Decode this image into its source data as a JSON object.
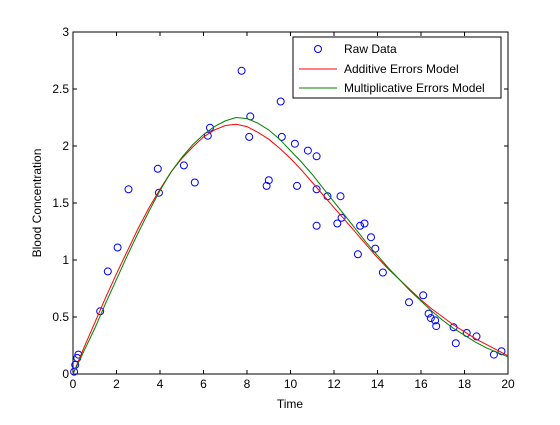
{
  "chart_data": {
    "type": "line",
    "title": "",
    "xlabel": "Time",
    "ylabel": "Blood Concentration",
    "xlim": [
      0,
      20
    ],
    "ylim": [
      0,
      3
    ],
    "xticks": [
      0,
      2,
      4,
      6,
      8,
      10,
      12,
      14,
      16,
      18,
      20
    ],
    "yticks": [
      0,
      0.5,
      1,
      1.5,
      2,
      2.5,
      3
    ],
    "xtick_labels": [
      "0",
      "2",
      "4",
      "6",
      "8",
      "10",
      "12",
      "14",
      "16",
      "18",
      "20"
    ],
    "ytick_labels": [
      "0",
      "0.5",
      "1",
      "1.5",
      "2",
      "2.5",
      "3"
    ],
    "grid": false,
    "legend_position": "top-right",
    "series": [
      {
        "name": "Raw Data",
        "kind": "scatter",
        "marker": "circle",
        "color": "#0000ff",
        "points": [
          [
            0.05,
            0.02
          ],
          [
            0.1,
            0.08
          ],
          [
            0.2,
            0.14
          ],
          [
            0.25,
            0.17
          ],
          [
            1.25,
            0.55
          ],
          [
            1.6,
            0.9
          ],
          [
            2.05,
            1.11
          ],
          [
            2.55,
            1.62
          ],
          [
            3.9,
            1.8
          ],
          [
            3.95,
            1.59
          ],
          [
            5.1,
            1.83
          ],
          [
            5.6,
            1.68
          ],
          [
            6.2,
            2.09
          ],
          [
            6.3,
            2.16
          ],
          [
            7.75,
            2.66
          ],
          [
            8.1,
            2.08
          ],
          [
            8.15,
            2.26
          ],
          [
            8.9,
            1.65
          ],
          [
            9.0,
            1.7
          ],
          [
            9.55,
            2.39
          ],
          [
            9.6,
            2.08
          ],
          [
            10.2,
            2.02
          ],
          [
            10.3,
            1.65
          ],
          [
            10.8,
            1.96
          ],
          [
            11.2,
            1.91
          ],
          [
            11.2,
            1.3
          ],
          [
            11.2,
            1.62
          ],
          [
            11.7,
            1.56
          ],
          [
            12.15,
            1.32
          ],
          [
            12.3,
            1.56
          ],
          [
            12.35,
            1.37
          ],
          [
            13.1,
            1.05
          ],
          [
            13.2,
            1.3
          ],
          [
            13.4,
            1.32
          ],
          [
            13.7,
            1.2
          ],
          [
            13.9,
            1.1
          ],
          [
            14.25,
            0.89
          ],
          [
            15.45,
            0.63
          ],
          [
            16.1,
            0.69
          ],
          [
            16.35,
            0.53
          ],
          [
            16.45,
            0.49
          ],
          [
            16.65,
            0.47
          ],
          [
            16.7,
            0.42
          ],
          [
            17.5,
            0.41
          ],
          [
            17.6,
            0.27
          ],
          [
            18.1,
            0.36
          ],
          [
            18.55,
            0.33
          ],
          [
            19.35,
            0.17
          ],
          [
            19.7,
            0.2
          ]
        ]
      },
      {
        "name": "Additive Errors Model",
        "kind": "line",
        "color": "#ff0000",
        "points": [
          [
            0,
            0
          ],
          [
            0.5,
            0.23
          ],
          [
            1,
            0.45
          ],
          [
            1.5,
            0.67
          ],
          [
            2,
            0.88
          ],
          [
            2.5,
            1.08
          ],
          [
            3,
            1.28
          ],
          [
            3.5,
            1.46
          ],
          [
            4,
            1.62
          ],
          [
            4.5,
            1.77
          ],
          [
            5,
            1.89
          ],
          [
            5.5,
            1.99
          ],
          [
            6,
            2.08
          ],
          [
            6.5,
            2.14
          ],
          [
            7,
            2.18
          ],
          [
            7.5,
            2.19
          ],
          [
            8,
            2.17
          ],
          [
            8.5,
            2.12
          ],
          [
            9,
            2.06
          ],
          [
            9.5,
            1.98
          ],
          [
            10,
            1.89
          ],
          [
            10.5,
            1.79
          ],
          [
            11,
            1.68
          ],
          [
            11.5,
            1.57
          ],
          [
            12,
            1.46
          ],
          [
            12.5,
            1.35
          ],
          [
            13,
            1.24
          ],
          [
            13.5,
            1.13
          ],
          [
            14,
            1.02
          ],
          [
            14.5,
            0.92
          ],
          [
            15,
            0.83
          ],
          [
            15.5,
            0.74
          ],
          [
            16,
            0.65
          ],
          [
            16.5,
            0.57
          ],
          [
            17,
            0.5
          ],
          [
            17.5,
            0.43
          ],
          [
            18,
            0.37
          ],
          [
            18.5,
            0.31
          ],
          [
            19,
            0.26
          ],
          [
            19.5,
            0.21
          ],
          [
            20,
            0.16
          ]
        ]
      },
      {
        "name": "Multiplicative Errors Model",
        "kind": "line",
        "color": "#008000",
        "points": [
          [
            0,
            0
          ],
          [
            0.5,
            0.2
          ],
          [
            1,
            0.4
          ],
          [
            1.5,
            0.62
          ],
          [
            2,
            0.83
          ],
          [
            2.5,
            1.04
          ],
          [
            3,
            1.24
          ],
          [
            3.5,
            1.43
          ],
          [
            4,
            1.61
          ],
          [
            4.5,
            1.77
          ],
          [
            5,
            1.9
          ],
          [
            5.5,
            2.01
          ],
          [
            6,
            2.1
          ],
          [
            6.5,
            2.17
          ],
          [
            7,
            2.22
          ],
          [
            7.5,
            2.25
          ],
          [
            8,
            2.24
          ],
          [
            8.5,
            2.2
          ],
          [
            9,
            2.14
          ],
          [
            9.5,
            2.06
          ],
          [
            10,
            1.96
          ],
          [
            10.5,
            1.86
          ],
          [
            11,
            1.75
          ],
          [
            11.5,
            1.63
          ],
          [
            12,
            1.51
          ],
          [
            12.5,
            1.39
          ],
          [
            13,
            1.27
          ],
          [
            13.5,
            1.15
          ],
          [
            14,
            1.04
          ],
          [
            14.5,
            0.93
          ],
          [
            15,
            0.83
          ],
          [
            15.5,
            0.73
          ],
          [
            16,
            0.64
          ],
          [
            16.5,
            0.55
          ],
          [
            17,
            0.47
          ],
          [
            17.5,
            0.4
          ],
          [
            18,
            0.34
          ],
          [
            18.5,
            0.28
          ],
          [
            19,
            0.23
          ],
          [
            19.5,
            0.19
          ],
          [
            20,
            0.15
          ]
        ]
      }
    ]
  }
}
